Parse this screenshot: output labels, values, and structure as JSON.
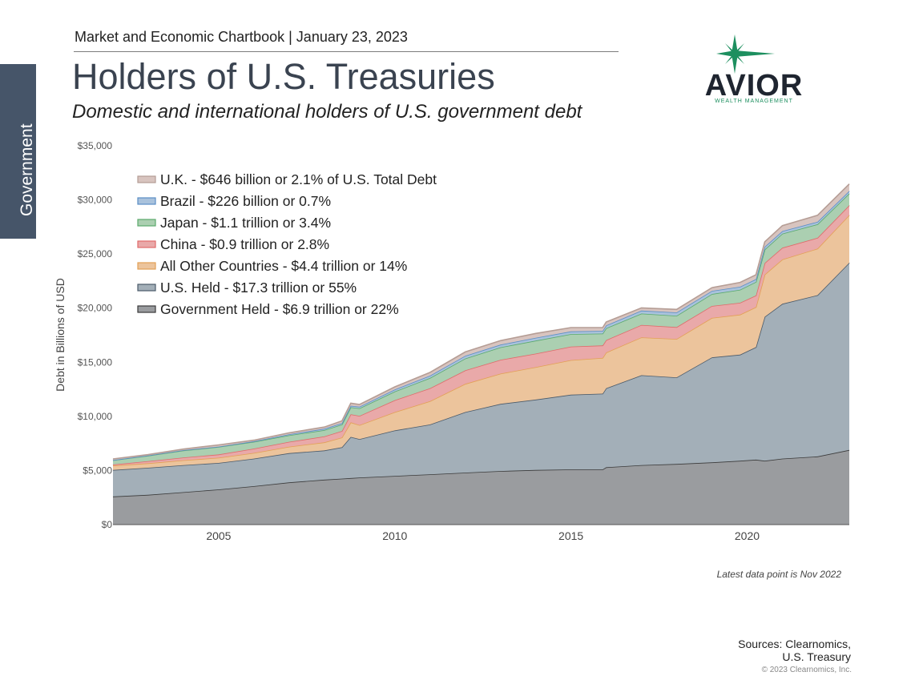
{
  "side_tab": {
    "label": "Government"
  },
  "header": {
    "chartbook": "Market and Economic Chartbook | January 23, 2023",
    "title": "Holders of U.S. Treasuries",
    "subtitle": "Domestic and international holders of U.S. government debt"
  },
  "logo": {
    "name": "AVIOR",
    "tagline": "WEALTH MANAGEMENT",
    "brand_color": "#1d8f5f",
    "icon": "star-icon"
  },
  "footer": {
    "note": "Latest data point is Nov 2022",
    "sources_line1": "Sources: Clearnomics,",
    "sources_line2": "U.S. Treasury",
    "copyright": "© 2023 Clearnomics, Inc."
  },
  "chart_data": {
    "type": "area",
    "stacked": true,
    "title": "",
    "xlabel": "",
    "ylabel": "Debt in Billions of USD",
    "xlim": [
      2002.0,
      2022.9
    ],
    "ylim": [
      0,
      35000
    ],
    "x_ticks": [
      2005,
      2010,
      2015,
      2020
    ],
    "y_ticks": [
      "$0",
      "$5,000",
      "$10,000",
      "$15,000",
      "$20,000",
      "$25,000",
      "$30,000",
      "$35,000"
    ],
    "grid": false,
    "legend_position": "top-left",
    "x": [
      2002.0,
      2003.0,
      2004.0,
      2005.0,
      2006.0,
      2007.0,
      2008.0,
      2008.5,
      2008.75,
      2009.0,
      2010.0,
      2011.0,
      2012.0,
      2013.0,
      2014.0,
      2015.0,
      2015.9,
      2016.0,
      2017.0,
      2018.0,
      2019.0,
      2019.8,
      2020.25,
      2020.5,
      2021.0,
      2022.0,
      2022.9
    ],
    "series": [
      {
        "name": "Government Held - $6.9 trillion or 22%",
        "color": "#9a9c9f",
        "line": "#3a3a3a",
        "values": [
          2600,
          2750,
          3000,
          3250,
          3550,
          3900,
          4150,
          4250,
          4300,
          4350,
          4500,
          4650,
          4800,
          4950,
          5050,
          5100,
          5100,
          5300,
          5500,
          5600,
          5750,
          5900,
          6000,
          5900,
          6100,
          6300,
          6900
        ]
      },
      {
        "name": "U.S. Held - $17.3 trillion or 55%",
        "color": "#a3afb8",
        "line": "#4a5a6a",
        "values": [
          2450,
          2500,
          2500,
          2450,
          2550,
          2700,
          2700,
          2900,
          3800,
          3550,
          4200,
          4600,
          5600,
          6200,
          6500,
          6900,
          7000,
          7300,
          8300,
          8000,
          9700,
          9800,
          10400,
          13300,
          14300,
          14900,
          17300
        ]
      },
      {
        "name": "All Other Countries - $4.4 trillion or 14%",
        "color": "#ecc49c",
        "line": "#e3a055",
        "values": [
          400,
          420,
          450,
          480,
          520,
          600,
          750,
          900,
          1350,
          1300,
          1700,
          2150,
          2600,
          2800,
          3000,
          3200,
          3300,
          3300,
          3500,
          3550,
          3650,
          3700,
          3700,
          3900,
          4100,
          4300,
          4400
        ]
      },
      {
        "name": "China - $0.9 trillion or 2.8%",
        "color": "#e9a9a9",
        "line": "#e06a6a",
        "values": [
          100,
          200,
          250,
          300,
          400,
          450,
          550,
          600,
          750,
          850,
          1100,
          1200,
          1250,
          1280,
          1250,
          1250,
          1150,
          1150,
          1150,
          1100,
          1100,
          1100,
          1070,
          1070,
          1080,
          1000,
          900
        ]
      },
      {
        "name": "Japan - $1.1 trillion or 3.4%",
        "color": "#abcfb1",
        "line": "#5aaa6c",
        "values": [
          400,
          500,
          650,
          700,
          630,
          600,
          580,
          600,
          640,
          700,
          800,
          950,
          1100,
          1150,
          1200,
          1150,
          1100,
          1100,
          1050,
          1050,
          1100,
          1200,
          1250,
          1250,
          1300,
          1250,
          1100
        ]
      },
      {
        "name": "Brazil - $226 billion or 0.7%",
        "color": "#a9c2dc",
        "line": "#5a8ec6",
        "values": [
          15,
          20,
          30,
          30,
          50,
          100,
          130,
          130,
          140,
          150,
          180,
          210,
          250,
          250,
          260,
          250,
          250,
          250,
          270,
          300,
          290,
          280,
          260,
          260,
          240,
          230,
          226
        ]
      },
      {
        "name": "U.K. - $646 billion or 2.1% of U.S. Total Debt",
        "color": "#d8c4bf",
        "line": "#b59d95",
        "values": [
          100,
          80,
          100,
          150,
          100,
          130,
          150,
          200,
          240,
          200,
          250,
          300,
          350,
          370,
          400,
          350,
          300,
          320,
          250,
          280,
          300,
          400,
          400,
          450,
          500,
          600,
          646
        ]
      }
    ]
  }
}
